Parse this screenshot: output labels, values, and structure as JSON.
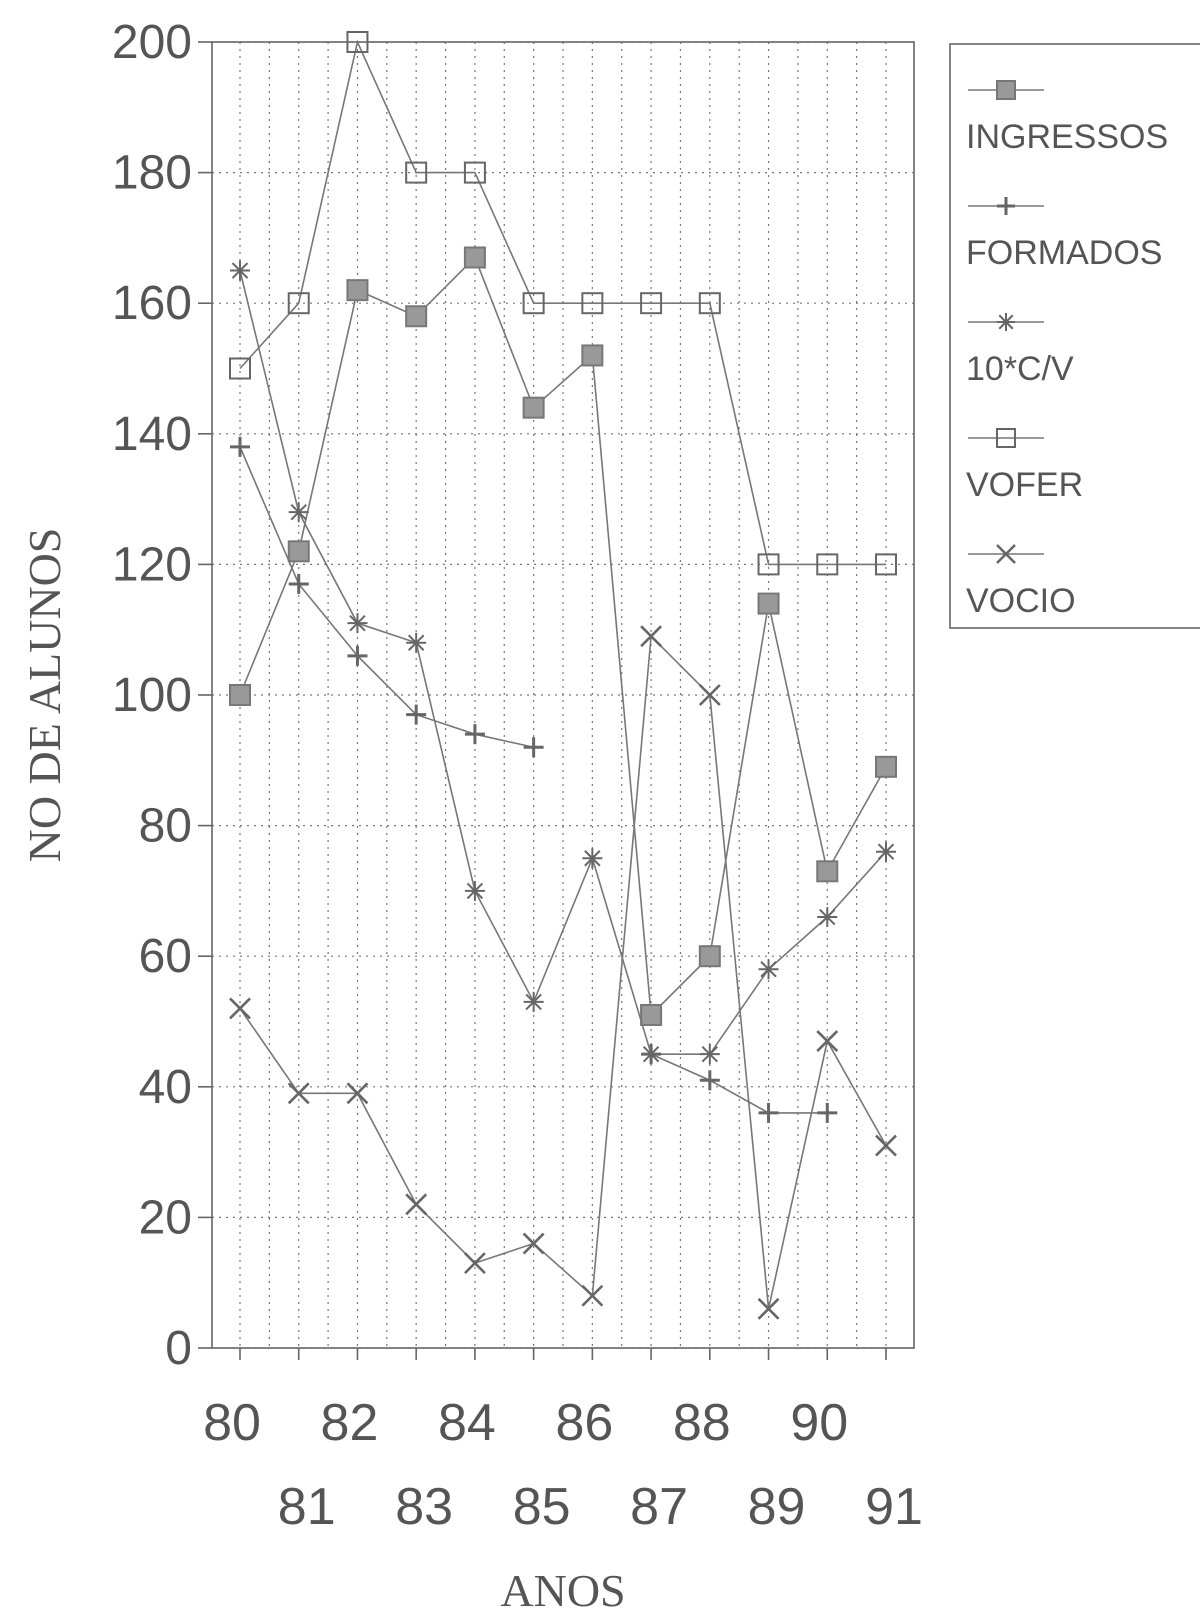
{
  "chart_data": {
    "type": "line",
    "xlabel": "ANOS",
    "ylabel": "NO DE ALUNOS",
    "x": [
      80,
      81,
      82,
      83,
      84,
      85,
      86,
      87,
      88,
      89,
      90,
      91
    ],
    "x_tick_labels_row1": [
      "80",
      "82",
      "84",
      "86",
      "88",
      "90"
    ],
    "x_tick_labels_row2": [
      "81",
      "83",
      "85",
      "87",
      "89",
      "91"
    ],
    "y_ticks": [
      0,
      20,
      40,
      60,
      80,
      100,
      120,
      140,
      160,
      180,
      200
    ],
    "ylim": [
      0,
      200
    ],
    "grid": true,
    "legend_position": "right",
    "series": [
      {
        "name": "INGRESSOS",
        "marker": "filled-square",
        "values": [
          100,
          122,
          162,
          158,
          167,
          144,
          152,
          51,
          60,
          114,
          73,
          89
        ]
      },
      {
        "name": "FORMADOS",
        "marker": "plus",
        "values": [
          138,
          117,
          106,
          97,
          94,
          92,
          null,
          45,
          41,
          36,
          36,
          null
        ]
      },
      {
        "name": "10*C/V",
        "marker": "asterisk",
        "values": [
          165,
          128,
          111,
          108,
          70,
          53,
          75,
          45,
          45,
          58,
          66,
          76
        ]
      },
      {
        "name": "VOFER",
        "marker": "open-square",
        "values": [
          150,
          160,
          200,
          180,
          180,
          160,
          160,
          160,
          160,
          120,
          120,
          120
        ]
      },
      {
        "name": "VOCIO",
        "marker": "x",
        "values": [
          52,
          39,
          39,
          22,
          13,
          16,
          8,
          109,
          100,
          6,
          47,
          31
        ]
      }
    ]
  }
}
